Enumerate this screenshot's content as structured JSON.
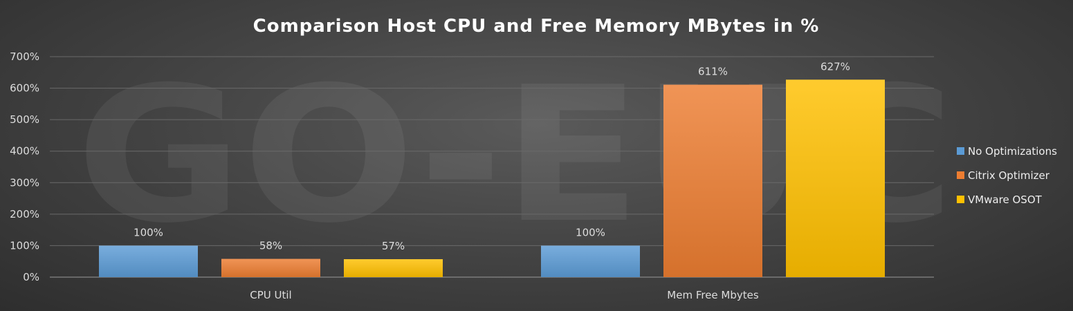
{
  "chart_data": {
    "type": "bar",
    "title": "Comparison Host CPU and Free Memory MBytes in %",
    "categories": [
      "CPU Util",
      "Mem Free Mbytes"
    ],
    "series": [
      {
        "name": "No Optimizations",
        "values": [
          100,
          100
        ],
        "labels": [
          "100%",
          "100%"
        ],
        "color": "#5b9bd5"
      },
      {
        "name": "Citrix Optimizer",
        "values": [
          58,
          611
        ],
        "labels": [
          "58%",
          "611%"
        ],
        "color": "#ed7d31"
      },
      {
        "name": "VMware OSOT",
        "values": [
          57,
          627
        ],
        "labels": [
          "57%",
          "627%"
        ],
        "color": "#ffc000"
      }
    ],
    "ylim": [
      0,
      700
    ],
    "yticks": [
      0,
      100,
      200,
      300,
      400,
      500,
      600,
      700
    ],
    "ytick_labels": [
      "0%",
      "100%",
      "200%",
      "300%",
      "400%",
      "500%",
      "600%",
      "700%"
    ],
    "grid": true,
    "legend_position": "right",
    "watermark": "GO-EUC"
  }
}
